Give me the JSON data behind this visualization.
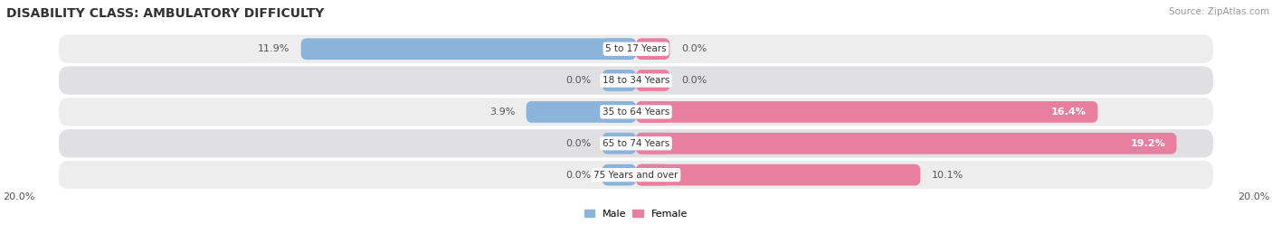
{
  "title": "DISABILITY CLASS: AMBULATORY DIFFICULTY",
  "source": "Source: ZipAtlas.com",
  "categories": [
    "5 to 17 Years",
    "18 to 34 Years",
    "35 to 64 Years",
    "65 to 74 Years",
    "75 Years and over"
  ],
  "male_values": [
    11.9,
    0.0,
    3.9,
    0.0,
    0.0
  ],
  "female_values": [
    0.0,
    0.0,
    16.4,
    19.2,
    10.1
  ],
  "male_color": "#8cb3d9",
  "female_color": "#e87fa0",
  "male_label": "Male",
  "female_label": "Female",
  "x_max": 20.0,
  "row_bg_even": "#ededee",
  "row_bg_odd": "#e0e0e2",
  "title_color": "#333333",
  "value_color_dark": "#555555",
  "value_color_light": "#ffffff",
  "title_fontsize": 10,
  "source_fontsize": 7.5,
  "label_fontsize": 8,
  "category_fontsize": 7.5,
  "axis_label_fontsize": 8
}
